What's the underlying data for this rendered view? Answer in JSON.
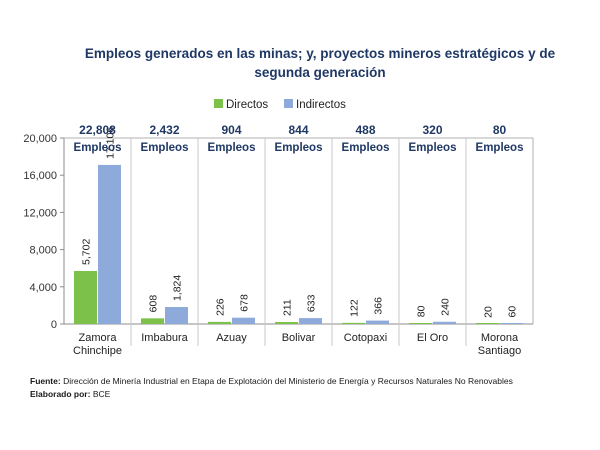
{
  "title_line1": "Empleos generados en las minas; y, proyectos mineros estratégicos y de",
  "title_line2": "segunda generación",
  "chart_data": {
    "type": "bar",
    "categories": [
      [
        "Zamora",
        "Chinchipe"
      ],
      [
        "Imbabura"
      ],
      [
        "Azuay"
      ],
      [
        "Bolivar"
      ],
      [
        "Cotopaxi"
      ],
      [
        "El Oro"
      ],
      [
        "Morona",
        "Santiago"
      ]
    ],
    "series": [
      {
        "name": "Directos",
        "color": "#7cc24a",
        "values": [
          5702,
          608,
          226,
          211,
          122,
          80,
          20
        ],
        "labels": [
          "5,702",
          "608",
          "226",
          "211",
          "122",
          "80",
          "20"
        ]
      },
      {
        "name": "Indirectos",
        "color": "#8eaadb",
        "values": [
          17106,
          1824,
          678,
          633,
          366,
          240,
          60
        ],
        "labels": [
          "17,106",
          "1,824",
          "678",
          "633",
          "366",
          "240",
          "60"
        ]
      }
    ],
    "totals": [
      "22,808",
      "2,432",
      "904",
      "844",
      "488",
      "320",
      "80"
    ],
    "totals_suffix": "Empleos",
    "ylim": [
      0,
      20000
    ],
    "yticks": [
      0,
      4000,
      8000,
      12000,
      16000,
      20000
    ],
    "ytick_labels": [
      "0",
      "4,000",
      "8,000",
      "12,000",
      "16,000",
      "20,000"
    ],
    "legend_position": "top",
    "grid": false
  },
  "source_label": "Fuente:",
  "source_text": " Dirección de Minería Industrial en Etapa de Explotación del Ministerio de Energía y Recursos Naturales No Renovables",
  "elaborado_label": "Elaborado por:",
  "elaborado_text": " BCE"
}
